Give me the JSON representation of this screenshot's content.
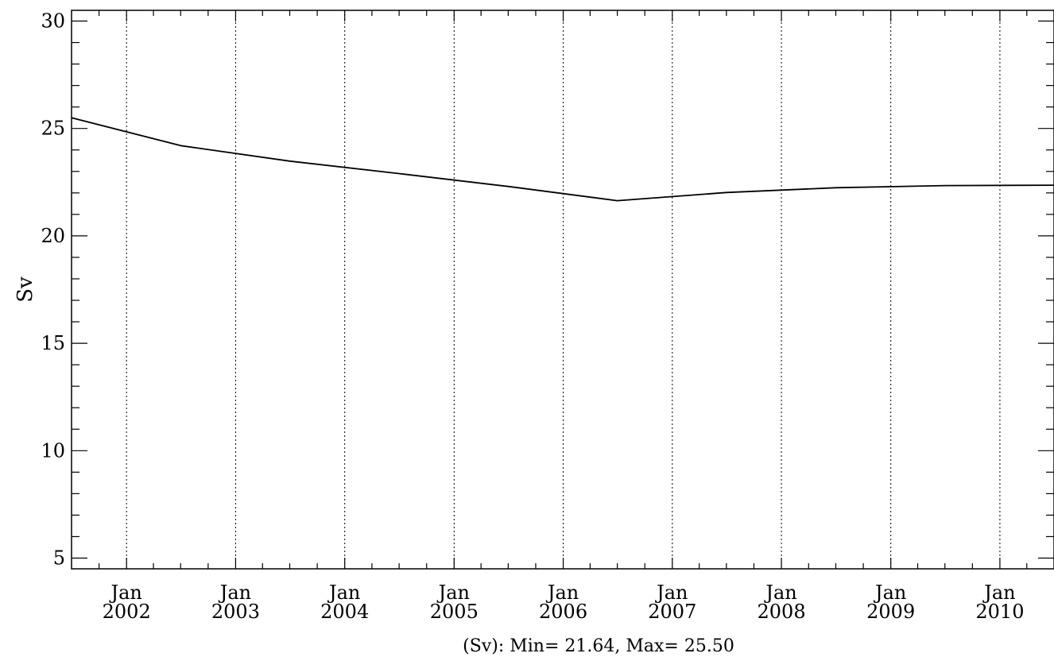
{
  "chart_data": {
    "type": "line",
    "ylabel": "Sv",
    "xlabel": "(Sv): Min= 21.64, Max= 25.50",
    "ylim": [
      4.5,
      30.5
    ],
    "xlim": [
      "2001-07-01",
      "2010-07-01"
    ],
    "y_ticks": [
      5,
      10,
      15,
      20,
      25,
      30
    ],
    "y_minor_step": 1,
    "x_ticks": [
      {
        "date": "2002-01-01",
        "line1": "Jan",
        "line2": "2002"
      },
      {
        "date": "2003-01-01",
        "line1": "Jan",
        "line2": "2003"
      },
      {
        "date": "2004-01-01",
        "line1": "Jan",
        "line2": "2004"
      },
      {
        "date": "2005-01-01",
        "line1": "Jan",
        "line2": "2005"
      },
      {
        "date": "2006-01-01",
        "line1": "Jan",
        "line2": "2006"
      },
      {
        "date": "2007-01-01",
        "line1": "Jan",
        "line2": "2007"
      },
      {
        "date": "2008-01-01",
        "line1": "Jan",
        "line2": "2008"
      },
      {
        "date": "2009-01-01",
        "line1": "Jan",
        "line2": "2009"
      },
      {
        "date": "2010-01-01",
        "line1": "Jan",
        "line2": "2010"
      }
    ],
    "grid": "vertical-dotted",
    "series": [
      {
        "color": "#000000",
        "points": [
          {
            "x": "2001-07-01",
            "y": 25.5
          },
          {
            "x": "2002-07-01",
            "y": 24.2
          },
          {
            "x": "2003-07-01",
            "y": 23.48
          },
          {
            "x": "2004-07-01",
            "y": 22.9
          },
          {
            "x": "2005-07-01",
            "y": 22.3
          },
          {
            "x": "2006-07-01",
            "y": 21.64
          },
          {
            "x": "2007-07-01",
            "y": 22.02
          },
          {
            "x": "2008-07-01",
            "y": 22.24
          },
          {
            "x": "2009-07-01",
            "y": 22.34
          },
          {
            "x": "2010-07-01",
            "y": 22.36
          }
        ]
      }
    ]
  }
}
